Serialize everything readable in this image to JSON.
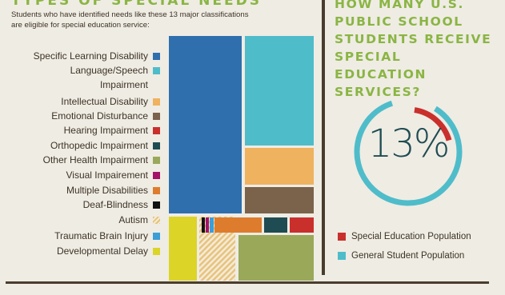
{
  "left_heading": "TYPES OF SPECIAL NEEDS",
  "intro": "Students who have identified needs like these 13 major classifications are eligible for special education service:",
  "right_heading": "HOW MANY U.S. PUBLIC SCHOOL STUDENTS RECEIVE SPECIAL EDUCATION SERVICES?",
  "colors": {
    "learning": "#2f6fae",
    "speech": "#4fbcca",
    "intellectual": "#efb25f",
    "emotional": "#7a624b",
    "hearing": "#c9302c",
    "orthopedic": "#1f4c52",
    "other_health": "#9aa85a",
    "visual": "#a4126a",
    "multiple": "#de7c2e",
    "deafblind": "#111111",
    "autism": "#e7c27a",
    "tbi": "#3c9ed6",
    "developmental": "#dcd427"
  },
  "chart_data": [
    {
      "type": "treemap",
      "title": "TYPES OF SPECIAL NEEDS",
      "categories": [
        {
          "name": "Specific Learning Disability",
          "color": "#2f6fae"
        },
        {
          "name": "Language/Speech Impairment",
          "color": "#4fbcca"
        },
        {
          "name": "Intellectual Disability",
          "color": "#efb25f"
        },
        {
          "name": "Emotional Disturbance",
          "color": "#7a624b"
        },
        {
          "name": "Hearing Impairment",
          "color": "#c9302c"
        },
        {
          "name": "Orthopedic Impairment",
          "color": "#1f4c52"
        },
        {
          "name": "Other Health Impairment",
          "color": "#9aa85a"
        },
        {
          "name": "Visual Impairement",
          "color": "#a4126a"
        },
        {
          "name": "Multiple Disabilities",
          "color": "#de7c2e"
        },
        {
          "name": "Deaf-Blindness",
          "color": "#111111"
        },
        {
          "name": "Autism",
          "color": "#e7c27a",
          "pattern": "stripes"
        },
        {
          "name": "Traumatic Brain Injury",
          "color": "#3c9ed6"
        },
        {
          "name": "Developmental Delay",
          "color": "#dcd427"
        }
      ]
    },
    {
      "type": "pie",
      "title": "HOW MANY U.S. PUBLIC SCHOOL STUDENTS RECEIVE SPECIAL EDUCATION SERVICES?",
      "center_label": "13%",
      "slices": [
        {
          "name": "Special Education Population",
          "value": 13,
          "color": "#c9302c"
        },
        {
          "name": "General Student Population",
          "value": 87,
          "color": "#4fbcca"
        }
      ]
    }
  ]
}
